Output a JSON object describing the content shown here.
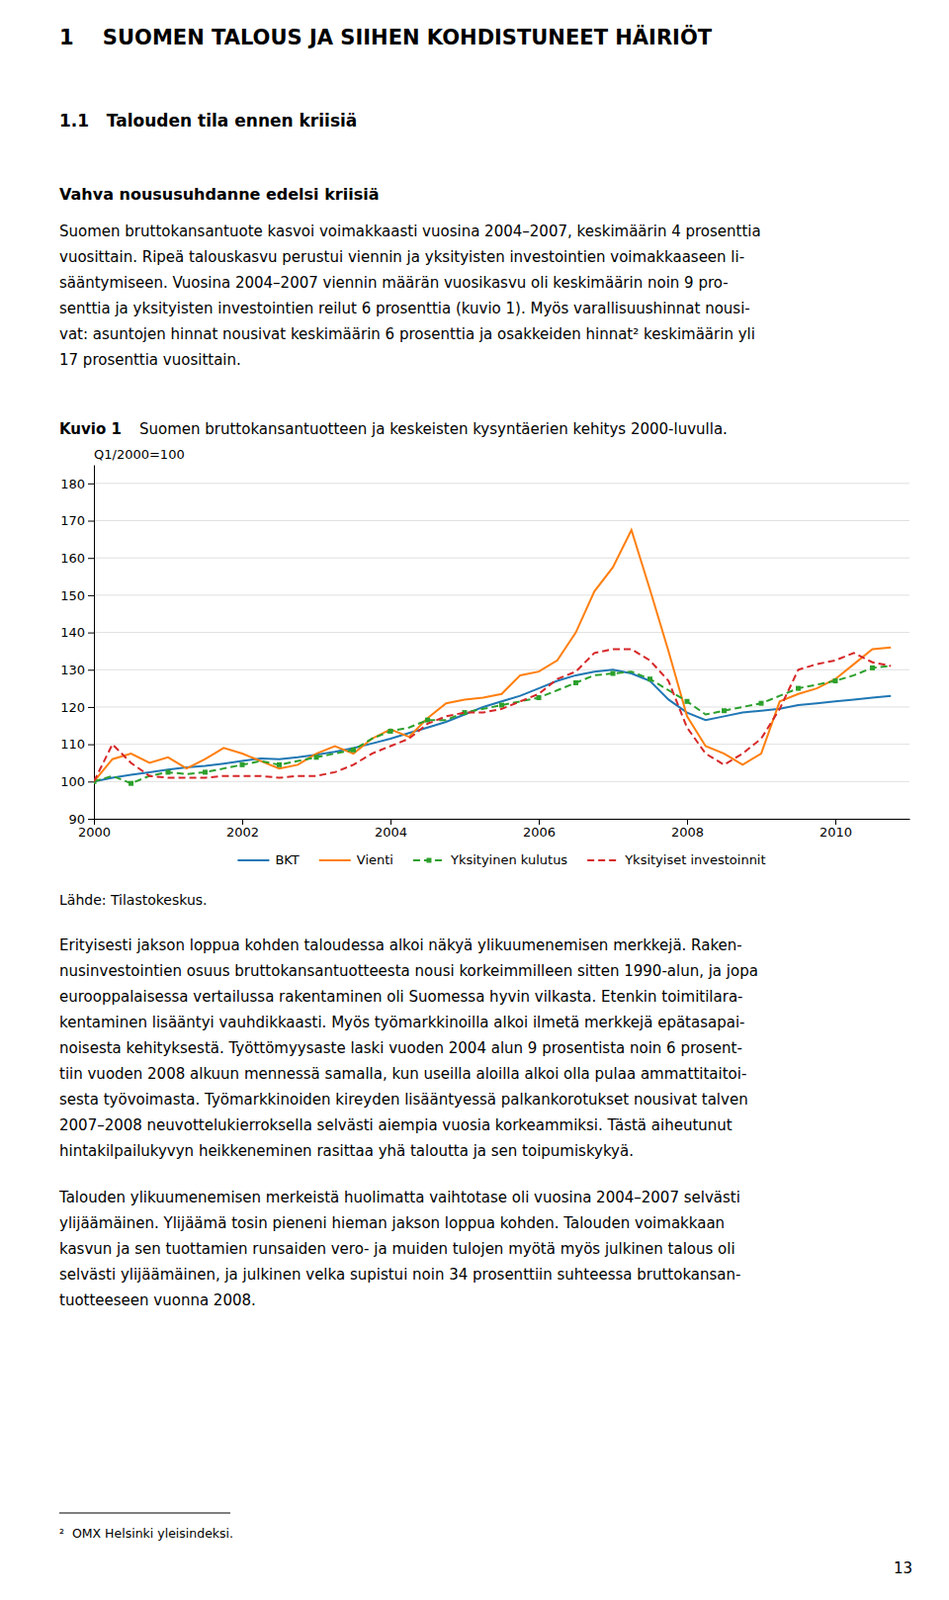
{
  "page": {
    "title_chapter": "1    SUOMEN TALOUS JA SIIHEN KOHDISTUNEET HÄIRIÖT",
    "title_section": "1.1   Talouden tila ennen kriisiä",
    "subtitle_bold": "Vahva noususuhdanne edelsi kriisiä",
    "body": [
      [
        "Suomen bruttokansantuote kasvoi voimakkaasti vuosina 2004–2007, keskimäärin 4 prosenttia",
        "vuosittain. Ripeä talouskasvu perustui viennin ja yksityisten investointien voimakkaaseen li-",
        "sääntymiseen. Vuosina 2004–2007 viennin määrän vuosikasvu oli keskimäärin noin 9 pro-",
        "senttia ja yksityisten investointien reilut 6 prosenttia (kuvio 1). Myös varallisuushinnat nousi-",
        "vat: asuntojen hinnat nousivat keskimäärin 6 prosenttia ja osakkeiden hinnat² keskimäärin yli",
        "17 prosenttia vuosittain."
      ],
      [
        "Erityisesti jakson loppua kohden taloudessa alkoi näkyä ylikuumenemisen merkkejä. Raken-",
        "nusinvestointien osuus bruttokansantuotteesta nousi korkeimmilleen sitten 1990-alun, ja jopa",
        "eurooppalaisessa vertailussa rakentaminen oli Suomessa hyvin vilkasta. Etenkin toimitilara-",
        "kentaminen lisääntyi vauhdikkaasti. Myös työmarkkinoilla alkoi ilmetä merkkejä epätasapai-",
        "noisesta kehityksestä. Työttömyysaste laski vuoden 2004 alun 9 prosentista noin 6 prosent-",
        "tiin vuoden 2008 alkuun mennessä samalla, kun useilla aloilla alkoi olla pulaa ammattitaitoi-",
        "sesta työvoimasta. Työmarkkinoiden kireyden lisääntyessä palkankorotukset nousivat talven",
        "2007–2008 neuvottelukierroksella selvästi aiempia vuosia korkeammiksi. Tästä aiheutunut",
        "hintakilpailukyvyn heikkeneminen rasittaa yhä taloutta ja sen toipumiskykyä."
      ],
      [
        "Talouden ylikuumenemisen merkeistä huolimatta vaihtotase oli vuosina 2004–2007 selvästi",
        "ylijäämäinen. Ylijäämä tosin pieneni hieman jakson loppua kohden. Talouden voimakkaan",
        "kasvun ja sen tuottamien runsaiden vero- ja muiden tulojen myötä myös julkinen talous oli",
        "selvästi ylijäämäinen, ja julkinen velka supistui noin 34 prosenttiin suhteessa bruttokansan-",
        "tuotteeseen vuonna 2008."
      ]
    ],
    "footnote": "²  OMX Helsinki yleisindeksi.",
    "page_number": "13"
  },
  "chart_data": {
    "type": "line",
    "figure_label": "Kuvio 1",
    "title": "Suomen bruttokansantuotteen ja keskeisten kysyntäerien kehitys 2000-luvulla.",
    "ylabel": "Q1/2000=100",
    "source": "Lähde: Tilastokeskus.",
    "x": [
      2000,
      2000.25,
      2000.5,
      2000.75,
      2001,
      2001.25,
      2001.5,
      2001.75,
      2002,
      2002.25,
      2002.5,
      2002.75,
      2003,
      2003.25,
      2003.5,
      2003.75,
      2004,
      2004.25,
      2004.5,
      2004.75,
      2005,
      2005.25,
      2005.5,
      2005.75,
      2006,
      2006.25,
      2006.5,
      2006.75,
      2007,
      2007.25,
      2007.5,
      2007.75,
      2008,
      2008.25,
      2008.5,
      2008.75,
      2009,
      2009.25,
      2009.5,
      2009.75,
      2010,
      2010.25,
      2010.5,
      2010.75
    ],
    "xlim": [
      2000,
      2011
    ],
    "xticks": [
      2000,
      2002,
      2004,
      2006,
      2008,
      2010
    ],
    "ylim": [
      90,
      185
    ],
    "yticks": [
      90,
      100,
      110,
      120,
      130,
      140,
      150,
      160,
      170,
      180
    ],
    "grid": "y",
    "series": [
      {
        "name": "BKT",
        "line_style": "solid",
        "values": [
          100,
          101.0,
          101.8,
          102.5,
          103.2,
          103.8,
          104.2,
          104.8,
          105.5,
          106.2,
          106.0,
          106.5,
          107.2,
          108.0,
          109.0,
          110.2,
          111.5,
          113.0,
          114.5,
          116.0,
          118.0,
          120.0,
          121.5,
          123.0,
          125.0,
          127.0,
          128.5,
          129.5,
          130.0,
          129.0,
          127.0,
          122.0,
          118.5,
          116.5,
          117.5,
          118.5,
          119.0,
          119.5,
          120.5,
          121.0,
          121.5,
          122.0,
          122.5,
          123.0
        ]
      },
      {
        "name": "Vienti",
        "line_style": "solid",
        "values": [
          100,
          106.0,
          107.5,
          105.0,
          106.5,
          103.5,
          106.0,
          109.0,
          107.5,
          105.5,
          103.5,
          104.5,
          107.5,
          109.5,
          107.5,
          111.5,
          114.0,
          112.0,
          117.0,
          121.0,
          122.0,
          122.5,
          123.5,
          128.5,
          129.5,
          132.5,
          140.0,
          151.0,
          157.5,
          167.5,
          151.5,
          135.0,
          117.5,
          109.5,
          107.5,
          104.5,
          107.5,
          121.5,
          123.5,
          125.0,
          127.5,
          131.5,
          135.5,
          136.0
        ]
      },
      {
        "name": "Yksityinen kulutus",
        "line_style": "dashed",
        "marker": "square",
        "values": [
          100,
          101.5,
          99.5,
          101.5,
          102.5,
          102.0,
          102.5,
          103.5,
          104.5,
          105.5,
          104.5,
          105.5,
          106.5,
          107.5,
          108.5,
          111.5,
          113.5,
          114.5,
          116.5,
          116.5,
          118.5,
          119.5,
          120.5,
          121.5,
          122.5,
          124.5,
          126.5,
          128.5,
          129.0,
          129.5,
          127.5,
          124.5,
          121.5,
          118.0,
          119.0,
          120.0,
          121.0,
          123.0,
          125.0,
          126.0,
          127.0,
          128.5,
          130.5,
          131.0
        ]
      },
      {
        "name": "Yksityiset investoinnit",
        "line_style": "dashed",
        "values": [
          100,
          110.0,
          105.0,
          101.5,
          101.0,
          101.0,
          101.0,
          101.5,
          101.5,
          101.5,
          101.0,
          101.5,
          101.5,
          102.5,
          104.5,
          107.5,
          109.5,
          111.5,
          115.5,
          117.5,
          118.5,
          118.5,
          119.5,
          121.5,
          123.5,
          127.5,
          129.5,
          134.5,
          135.5,
          135.5,
          132.5,
          127.0,
          114.5,
          107.5,
          104.5,
          107.5,
          111.5,
          119.5,
          130.0,
          131.5,
          132.5,
          134.5,
          132.0,
          131.0
        ]
      }
    ]
  }
}
